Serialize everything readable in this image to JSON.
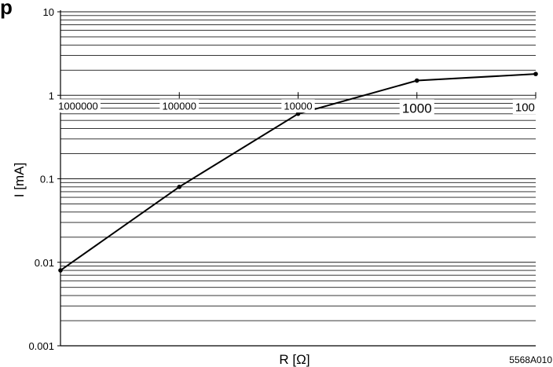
{
  "figure_tag": "p",
  "figure_code": "5568A010",
  "chart_data": {
    "type": "line",
    "ylabel": "I [mA]",
    "xlabel": "R [Ω]",
    "yscale": "log",
    "ylim": [
      0.001,
      10
    ],
    "yticks": [
      "10",
      "1",
      "0.1",
      "0.01",
      "0.001"
    ],
    "xscale": "log-reversed",
    "xlim": [
      1000000,
      100
    ],
    "xticks": [
      "1000000",
      "100000",
      "10000",
      "1000",
      "100"
    ],
    "grid": true,
    "series": [
      {
        "x": [
          1000000,
          100000,
          10000,
          1000,
          100
        ],
        "values": [
          0.008,
          0.08,
          0.6,
          1.5,
          1.8
        ]
      }
    ]
  }
}
